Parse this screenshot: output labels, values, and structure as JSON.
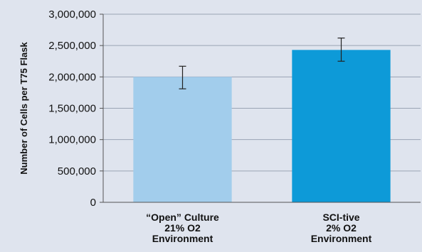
{
  "chart_data": {
    "type": "bar",
    "ylabel": "Number of Cells per T75 Flask",
    "xlabel": "",
    "ylim": [
      0,
      3000000
    ],
    "yticks": [
      0,
      500000,
      1000000,
      1500000,
      2000000,
      2500000,
      3000000
    ],
    "ytick_labels": [
      "0",
      "500,000",
      "1,000,000",
      "1,500,000",
      "2,000,000",
      "2,500,000",
      "3,000,000"
    ],
    "grid": true,
    "categories": [
      [
        "“Open” Culture",
        "21% O2",
        "Environment"
      ],
      [
        "SCI-tive",
        "2% O2",
        "Environment"
      ]
    ],
    "values": [
      2000000,
      2430000
    ],
    "error": [
      {
        "low": 1810000,
        "high": 2170000
      },
      {
        "low": 2250000,
        "high": 2620000
      }
    ],
    "colors": [
      "#a2cdec",
      "#0d9ad8"
    ],
    "gridline_color": "#9aa3b4",
    "axis_color": "#555555"
  }
}
